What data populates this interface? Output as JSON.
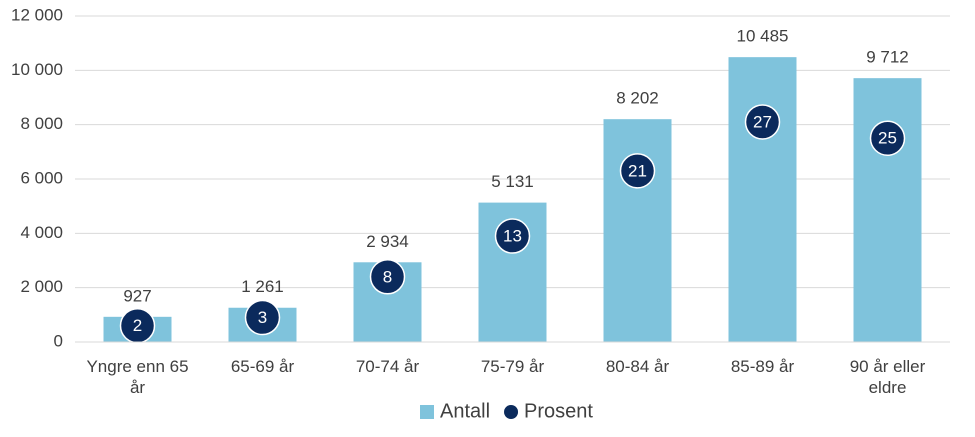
{
  "chart_data": {
    "type": "bar",
    "categories": [
      "Yngre enn 65 år",
      "65-69 år",
      "70-74 år",
      "75-79 år",
      "80-84 år",
      "85-89 år",
      "90 år eller eldre"
    ],
    "series": [
      {
        "name": "Antall",
        "type": "bar",
        "color": "#7fc3dc",
        "values": [
          927,
          1261,
          2934,
          5131,
          8202,
          10485,
          9712
        ],
        "value_labels": [
          "927",
          "1 261",
          "2 934",
          "5 131",
          "8 202",
          "10 485",
          "9 712"
        ]
      },
      {
        "name": "Prosent",
        "type": "scatter",
        "axis": "y2",
        "color": "#0b2a5c",
        "values": [
          2,
          3,
          8,
          13,
          21,
          27,
          25
        ]
      }
    ],
    "ylim": [
      0,
      12000
    ],
    "yticks": [
      0,
      {
        "value": 2000,
        "label": "2 000"
      },
      {
        "value": 4000,
        "label": "4 000"
      },
      {
        "value": 6000,
        "label": "6 000"
      },
      {
        "value": 8000,
        "label": "8 000"
      },
      {
        "value": 10000,
        "label": "10 000"
      },
      {
        "value": 12000,
        "label": "12 000"
      }
    ],
    "y2lim": [
      0,
      40
    ],
    "grid": true,
    "legend": "bottom"
  }
}
